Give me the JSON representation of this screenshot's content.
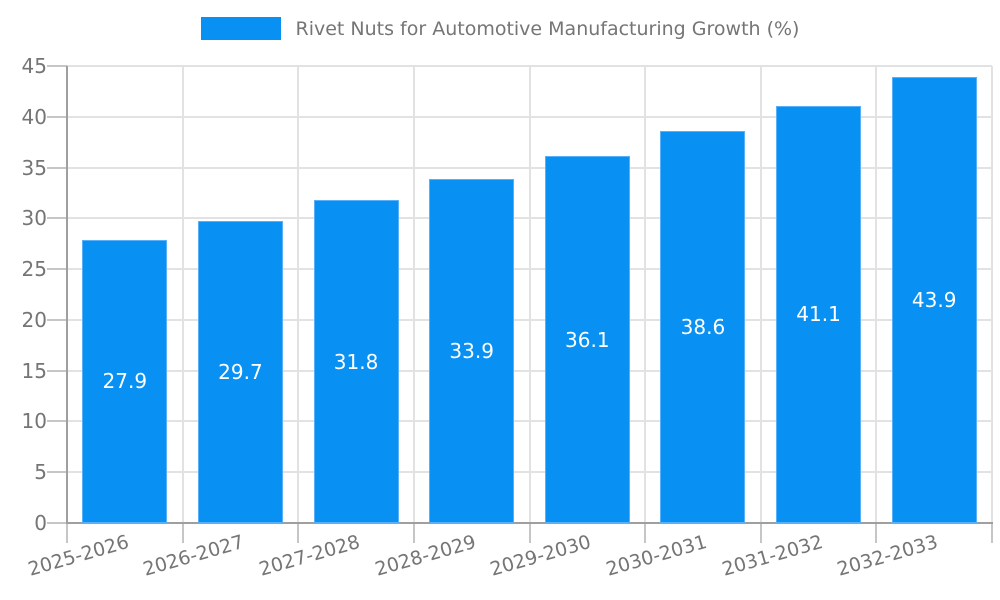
{
  "legend": {
    "label": "Rivet Nuts for Automotive Manufacturing Growth (%)"
  },
  "chart_data": {
    "type": "bar",
    "title": "Rivet Nuts for Automotive Manufacturing Growth (%)",
    "categories": [
      "2025-2026",
      "2026-2027",
      "2027-2028",
      "2028-2029",
      "2029-2030",
      "2030-2031",
      "2031-2032",
      "2032-2033"
    ],
    "values": [
      27.9,
      29.7,
      31.8,
      33.9,
      36.1,
      38.6,
      41.1,
      43.9
    ],
    "data_labels": [
      "27.9",
      "29.7",
      "31.8",
      "33.9",
      "36.1",
      "38.6",
      "41.1",
      "43.9"
    ],
    "xlabel": "",
    "ylabel": "",
    "ylim": [
      0,
      45
    ],
    "yticks": [
      0,
      5,
      10,
      15,
      20,
      25,
      30,
      35,
      40,
      45
    ],
    "grid": true,
    "legend_position": "top",
    "x_tick_rotation_deg": -16
  },
  "colors": {
    "bar_fill": "#0990f3",
    "bar_edge": "#57b0f8",
    "value_label": "#ffffff",
    "grid_line": "#e2e2e2",
    "tick_mark": "#c6c6c6",
    "axis_line": "#9f9f9f",
    "tick_text": "#757575",
    "legend_text": "#757575",
    "background": "#ffffff"
  }
}
